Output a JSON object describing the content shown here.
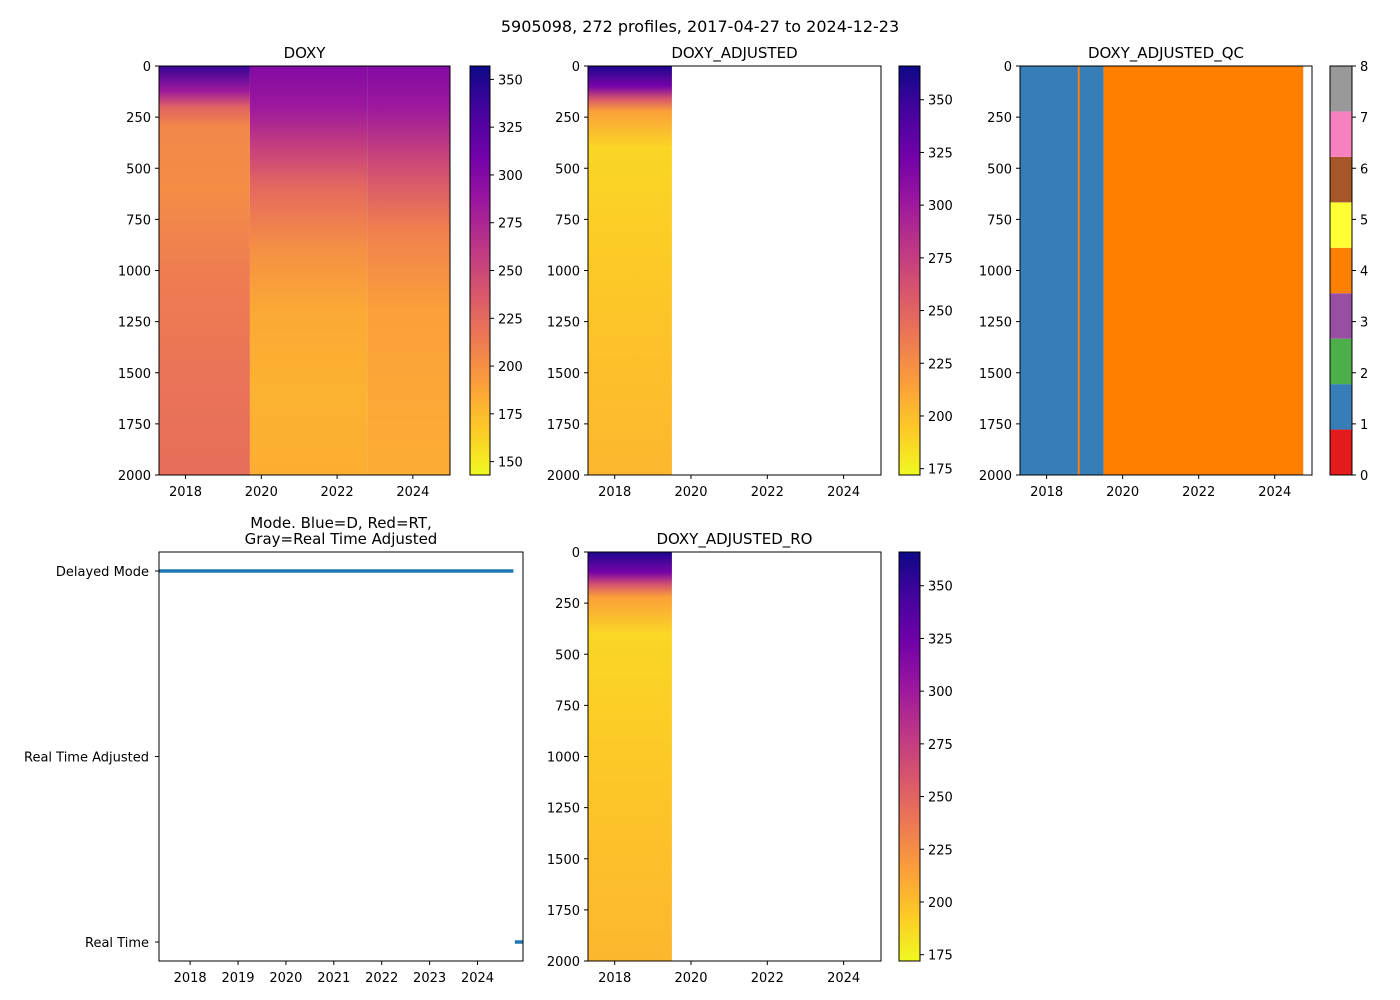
{
  "suptitle": "5905098, 272 profiles, 2017-04-27 to 2024-12-23",
  "colormaps": {
    "plasma_r": [
      "#f0f921",
      "#fdca26",
      "#fb9f3a",
      "#ed7953",
      "#d8576b",
      "#bd3786",
      "#9c179e",
      "#7201a8",
      "#46039f",
      "#0d0887"
    ],
    "qc": [
      "#e41a1c",
      "#377eb8",
      "#4daf4a",
      "#984ea3",
      "#ff7f00",
      "#ffff33",
      "#a65628",
      "#f781bf",
      "#999999"
    ],
    "mode_color": "#1f77b4"
  },
  "chart_data": [
    {
      "id": "doxy",
      "type": "heatmap",
      "title": "DOXY",
      "x_range": [
        2017.3,
        2024.98
      ],
      "y_range": [
        2000,
        0
      ],
      "x_ticks": [
        2018,
        2020,
        2022,
        2024
      ],
      "x_tick_labels": [
        "2018",
        "2020",
        "2022",
        "2024"
      ],
      "y_ticks": [
        0,
        250,
        500,
        750,
        1000,
        1250,
        1500,
        1750,
        2000
      ],
      "y_tick_labels": [
        "0",
        "250",
        "500",
        "750",
        "1000",
        "1250",
        "1500",
        "1750",
        "2000"
      ],
      "colorbar": {
        "cmap": "plasma_r",
        "range": [
          143,
          357
        ],
        "ticks": [
          150,
          175,
          200,
          225,
          250,
          275,
          300,
          325,
          350
        ],
        "tick_labels": [
          "150",
          "175",
          "200",
          "225",
          "250",
          "275",
          "300",
          "325",
          "350"
        ]
      },
      "bands": [
        {
          "x": [
            2017.3,
            2019.7
          ],
          "profile": [
            [
              0,
              340
            ],
            [
              120,
              285
            ],
            [
              200,
              230
            ],
            [
              300,
              205
            ],
            [
              600,
              202
            ],
            [
              1000,
              212
            ],
            [
              1500,
              218
            ],
            [
              2000,
              222
            ]
          ]
        },
        {
          "x": [
            2019.7,
            2022.8
          ],
          "profile": [
            [
              0,
              300
            ],
            [
              200,
              285
            ],
            [
              400,
              255
            ],
            [
              600,
              225
            ],
            [
              900,
              200
            ],
            [
              1200,
              185
            ],
            [
              1600,
              180
            ],
            [
              2000,
              182
            ]
          ]
        },
        {
          "x": [
            2022.8,
            2024.98
          ],
          "profile": [
            [
              0,
              300
            ],
            [
              200,
              285
            ],
            [
              500,
              245
            ],
            [
              800,
              210
            ],
            [
              1200,
              190
            ],
            [
              2000,
              183
            ]
          ]
        }
      ]
    },
    {
      "id": "doxy_adjusted",
      "type": "heatmap",
      "title": "DOXY_ADJUSTED",
      "x_range": [
        2017.3,
        2024.98
      ],
      "y_range": [
        2000,
        0
      ],
      "x_ticks": [
        2018,
        2020,
        2022,
        2024
      ],
      "x_tick_labels": [
        "2018",
        "2020",
        "2022",
        "2024"
      ],
      "y_ticks": [
        0,
        250,
        500,
        750,
        1000,
        1250,
        1500,
        1750,
        2000
      ],
      "y_tick_labels": [
        "0",
        "250",
        "500",
        "750",
        "1000",
        "1250",
        "1500",
        "1750",
        "2000"
      ],
      "colorbar": {
        "cmap": "plasma_r",
        "range": [
          172,
          366
        ],
        "ticks": [
          175,
          200,
          225,
          250,
          275,
          300,
          325,
          350
        ],
        "tick_labels": [
          "175",
          "200",
          "225",
          "250",
          "275",
          "300",
          "325",
          "350"
        ]
      },
      "bands": [
        {
          "x": [
            2017.3,
            2019.5
          ],
          "profile": [
            [
              0,
              360
            ],
            [
              100,
              320
            ],
            [
              160,
              260
            ],
            [
              220,
              215
            ],
            [
              400,
              188
            ],
            [
              800,
              192
            ],
            [
              1400,
              198
            ],
            [
              2000,
              203
            ]
          ]
        }
      ]
    },
    {
      "id": "doxy_adjusted_qc",
      "type": "heatmap",
      "title": "DOXY_ADJUSTED_QC",
      "x_range": [
        2017.3,
        2024.98
      ],
      "y_range": [
        2000,
        0
      ],
      "x_ticks": [
        2018,
        2020,
        2022,
        2024
      ],
      "x_tick_labels": [
        "2018",
        "2020",
        "2022",
        "2024"
      ],
      "y_ticks": [
        0,
        250,
        500,
        750,
        1000,
        1250,
        1500,
        1750,
        2000
      ],
      "y_tick_labels": [
        "0",
        "250",
        "500",
        "750",
        "1000",
        "1250",
        "1500",
        "1750",
        "2000"
      ],
      "colorbar": {
        "cmap": "qc",
        "range": [
          0,
          8
        ],
        "ticks": [
          0,
          1,
          2,
          3,
          4,
          5,
          6,
          7,
          8
        ],
        "tick_labels": [
          "0",
          "1",
          "2",
          "3",
          "4",
          "5",
          "6",
          "7",
          "8"
        ]
      },
      "qc_segments": [
        {
          "x": [
            2017.3,
            2019.5
          ],
          "flag": 1
        },
        {
          "x": [
            2018.82,
            2018.87
          ],
          "flag": 4
        },
        {
          "x": [
            2019.5,
            2024.75
          ],
          "flag": 4
        }
      ]
    },
    {
      "id": "mode",
      "type": "scatter",
      "title": "Mode. Blue=D, Red=RT,\nGray=Real Time Adjusted",
      "x_range": [
        2017.35,
        2024.95
      ],
      "x_ticks": [
        2018,
        2019,
        2020,
        2021,
        2022,
        2023,
        2024
      ],
      "x_tick_labels": [
        "2018",
        "2019",
        "2020",
        "2021",
        "2022",
        "2023",
        "2024"
      ],
      "categories": [
        "Real Time",
        "Real Time Adjusted",
        "Delayed Mode"
      ],
      "series": [
        {
          "name": "Delayed Mode",
          "x_range": [
            2017.35,
            2024.75
          ],
          "category": "Delayed Mode"
        },
        {
          "name": "Real Time",
          "x_range": [
            2024.78,
            2024.95
          ],
          "category": "Real Time"
        }
      ]
    },
    {
      "id": "doxy_adjusted_ro",
      "type": "heatmap",
      "title": "DOXY_ADJUSTED_RO",
      "x_range": [
        2017.3,
        2024.98
      ],
      "y_range": [
        2000,
        0
      ],
      "x_ticks": [
        2018,
        2020,
        2022,
        2024
      ],
      "x_tick_labels": [
        "2018",
        "2020",
        "2022",
        "2024"
      ],
      "y_ticks": [
        0,
        250,
        500,
        750,
        1000,
        1250,
        1500,
        1750,
        2000
      ],
      "y_tick_labels": [
        "0",
        "250",
        "500",
        "750",
        "1000",
        "1250",
        "1500",
        "1750",
        "2000"
      ],
      "colorbar": {
        "cmap": "plasma_r",
        "range": [
          172,
          366
        ],
        "ticks": [
          175,
          200,
          225,
          250,
          275,
          300,
          325,
          350
        ],
        "tick_labels": [
          "175",
          "200",
          "225",
          "250",
          "275",
          "300",
          "325",
          "350"
        ]
      },
      "bands": [
        {
          "x": [
            2017.3,
            2019.5
          ],
          "profile": [
            [
              0,
              360
            ],
            [
              100,
              320
            ],
            [
              160,
              260
            ],
            [
              220,
              215
            ],
            [
              400,
              188
            ],
            [
              800,
              192
            ],
            [
              1400,
              198
            ],
            [
              2000,
              203
            ]
          ]
        }
      ]
    }
  ]
}
